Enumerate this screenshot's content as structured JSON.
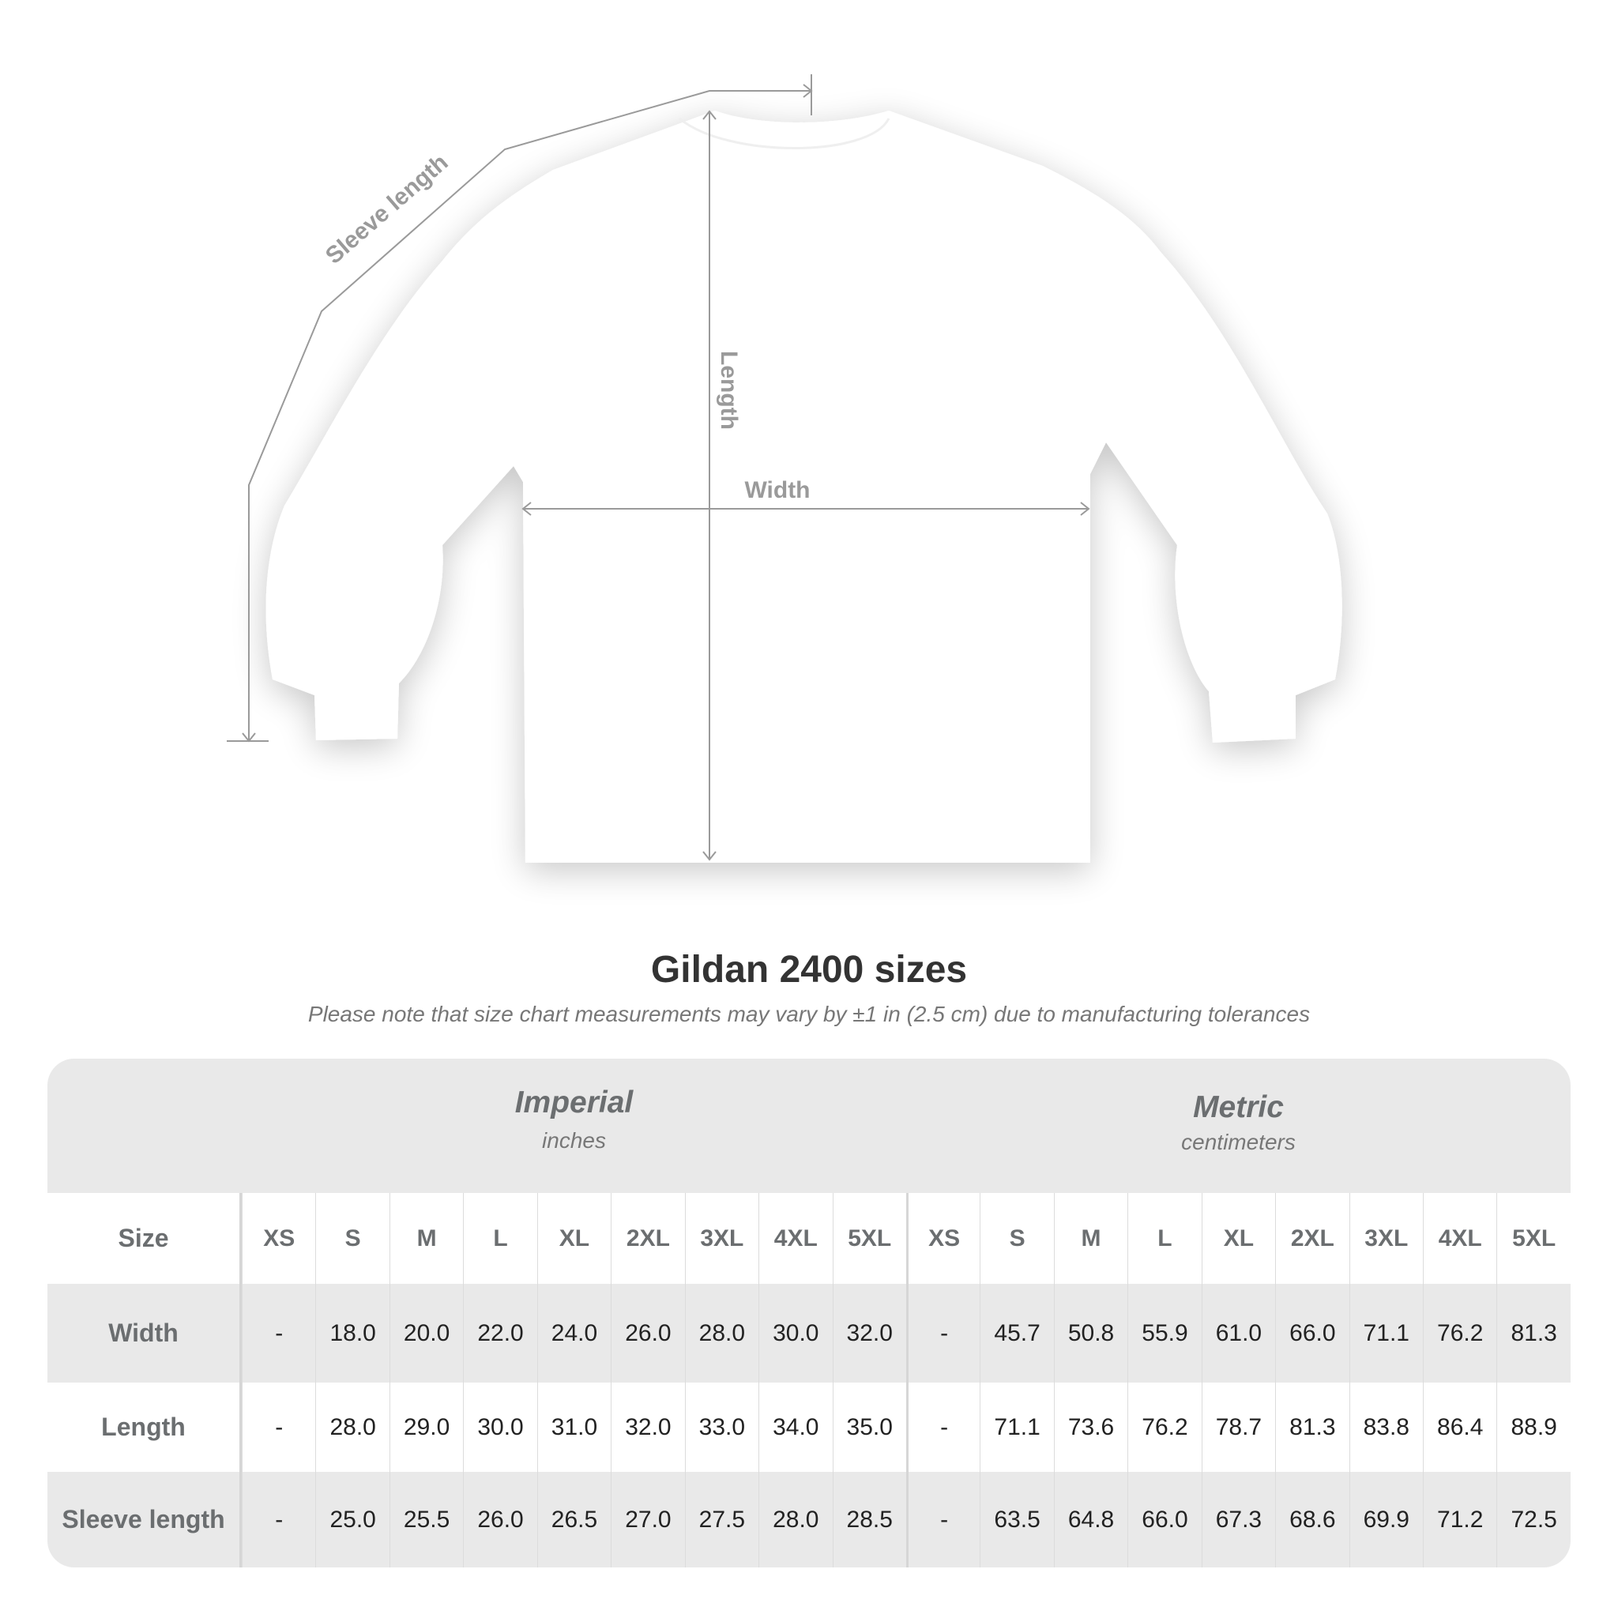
{
  "diagram": {
    "labels": {
      "sleeve": "Sleeve length",
      "length": "Length",
      "width": "Width"
    },
    "shirt_color": "#ffffff",
    "line_color": "#9a9a9a"
  },
  "title": "Gildan 2400 sizes",
  "subtitle": "Please note that size chart measurements may vary by ±1 in (2.5 cm) due to manufacturing tolerances",
  "table": {
    "imperial": {
      "label": "Imperial",
      "unit": "inches"
    },
    "metric": {
      "label": "Metric",
      "unit": "centimeters"
    },
    "size_label": "Size",
    "sizes": [
      "XS",
      "S",
      "M",
      "L",
      "XL",
      "2XL",
      "3XL",
      "4XL",
      "5XL"
    ],
    "rows": [
      {
        "label": "Width",
        "imperial": [
          "-",
          "18.0",
          "20.0",
          "22.0",
          "24.0",
          "26.0",
          "28.0",
          "30.0",
          "32.0"
        ],
        "metric": [
          "-",
          "45.7",
          "50.8",
          "55.9",
          "61.0",
          "66.0",
          "71.1",
          "76.2",
          "81.3"
        ]
      },
      {
        "label": "Length",
        "imperial": [
          "-",
          "28.0",
          "29.0",
          "30.0",
          "31.0",
          "32.0",
          "33.0",
          "34.0",
          "35.0"
        ],
        "metric": [
          "-",
          "71.1",
          "73.6",
          "76.2",
          "78.7",
          "81.3",
          "83.8",
          "86.4",
          "88.9"
        ]
      },
      {
        "label": "Sleeve length",
        "imperial": [
          "-",
          "25.0",
          "25.5",
          "26.0",
          "26.5",
          "27.0",
          "27.5",
          "28.0",
          "28.5"
        ],
        "metric": [
          "-",
          "63.5",
          "64.8",
          "66.0",
          "67.3",
          "68.6",
          "69.9",
          "71.2",
          "72.5"
        ]
      }
    ]
  }
}
